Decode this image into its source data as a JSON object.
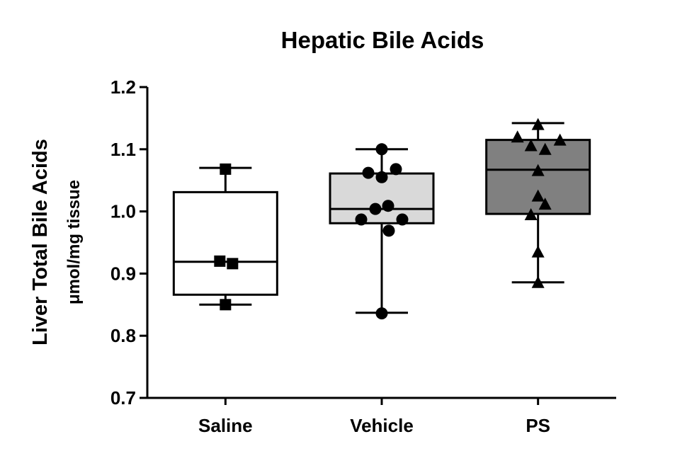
{
  "chart_data": {
    "type": "box",
    "title": "Hepatic Bile Acids",
    "y_label": [
      "Liver Total Bile Acids",
      "μmol/mg tissue"
    ],
    "categories": [
      "Saline",
      "Vehicle",
      "PS"
    ],
    "boxes": [
      {
        "min": 0.85,
        "q1": 0.866,
        "median": 0.919,
        "q3": 1.031,
        "max": 1.07,
        "color": "#ffffff",
        "marker": "square",
        "points": [
          1.068,
          0.92,
          0.916,
          0.85
        ]
      },
      {
        "min": 0.837,
        "q1": 0.981,
        "median": 1.004,
        "q3": 1.061,
        "max": 1.1,
        "color": "#d9d9d9",
        "marker": "circle",
        "points": [
          1.1,
          1.062,
          1.055,
          1.068,
          1.004,
          1.009,
          0.987,
          0.987,
          0.969,
          0.836
        ]
      },
      {
        "min": 0.886,
        "q1": 0.996,
        "median": 1.067,
        "q3": 1.115,
        "max": 1.142,
        "color": "#808080",
        "marker": "triangle",
        "points": [
          1.14,
          1.12,
          1.106,
          1.1,
          1.115,
          1.066,
          1.025,
          1.012,
          0.995,
          0.935,
          0.886
        ]
      }
    ],
    "ylim": [
      0.7,
      1.2
    ],
    "yticks": [
      0.7,
      0.8,
      0.9,
      {
        "value": 1,
        "label": "1.0"
      },
      1.1,
      1.2
    ]
  }
}
